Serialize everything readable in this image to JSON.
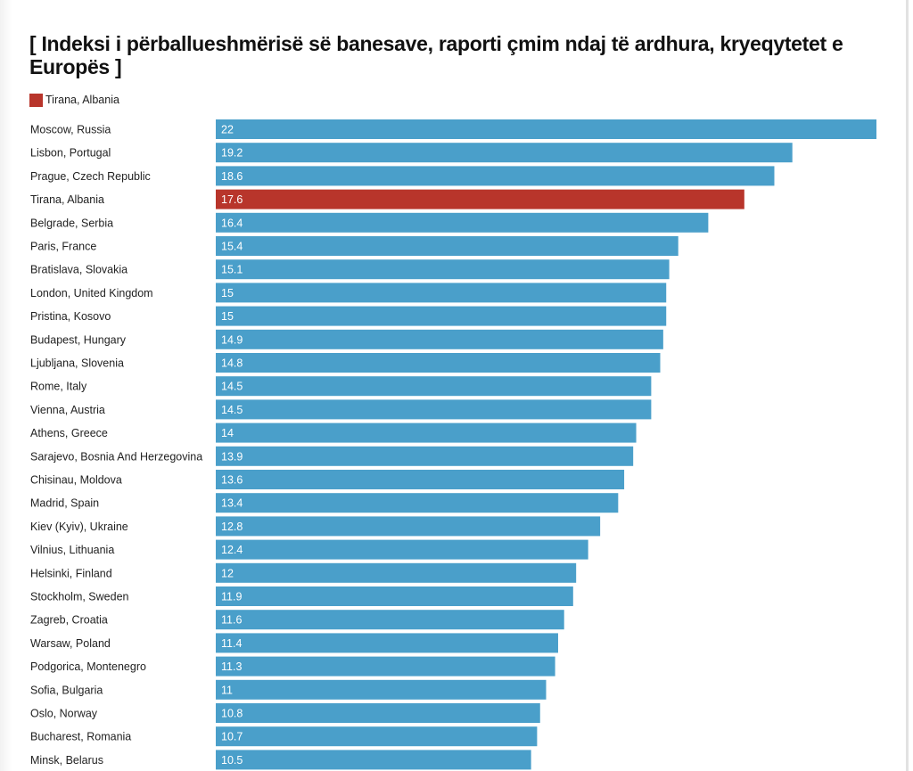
{
  "title": "[ Indeksi i përballueshmërisë së banesave, raporti çmim ndaj të ardhura, kryeqytetet e Europës ]",
  "legend": {
    "label": "Tirana, Albania",
    "color": "#b8352b"
  },
  "colors": {
    "default_bar": "#4a9fca",
    "highlight_bar": "#b8352b"
  },
  "chart_data": {
    "type": "bar",
    "orientation": "horizontal",
    "title": "[ Indeksi i përballueshmërisë së banesave, raporti çmim ndaj të ardhura, kryeqytetet e Europës ]",
    "xlabel": "",
    "ylabel": "",
    "xlim": [
      0,
      22
    ],
    "grid": false,
    "legend": {
      "entries": [
        "Tirana, Albania"
      ],
      "placement": "top-left"
    },
    "highlight": "Tirana, Albania",
    "categories": [
      "Moscow, Russia",
      "Lisbon, Portugal",
      "Prague, Czech Republic",
      "Tirana, Albania",
      "Belgrade, Serbia",
      "Paris, France",
      "Bratislava, Slovakia",
      "London, United Kingdom",
      "Pristina, Kosovo",
      "Budapest, Hungary",
      "Ljubljana, Slovenia",
      "Rome, Italy",
      "Vienna, Austria",
      "Athens, Greece",
      "Sarajevo, Bosnia And Herzegovina",
      "Chisinau, Moldova",
      "Madrid, Spain",
      "Kiev (Kyiv), Ukraine",
      "Vilnius, Lithuania",
      "Helsinki, Finland",
      "Stockholm, Sweden",
      "Zagreb, Croatia",
      "Warsaw, Poland",
      "Podgorica, Montenegro",
      "Sofia, Bulgaria",
      "Oslo, Norway",
      "Bucharest, Romania",
      "Minsk, Belarus"
    ],
    "values": [
      22,
      19.2,
      18.6,
      17.6,
      16.4,
      15.4,
      15.1,
      15,
      15,
      14.9,
      14.8,
      14.5,
      14.5,
      14,
      13.9,
      13.6,
      13.4,
      12.8,
      12.4,
      12,
      11.9,
      11.6,
      11.4,
      11.3,
      11,
      10.8,
      10.7,
      10.5
    ],
    "value_labels": [
      "22",
      "19.2",
      "18.6",
      "17.6",
      "16.4",
      "15.4",
      "15.1",
      "15",
      "15",
      "14.9",
      "14.8",
      "14.5",
      "14.5",
      "14",
      "13.9",
      "13.6",
      "13.4",
      "12.8",
      "12.4",
      "12",
      "11.9",
      "11.6",
      "11.4",
      "11.3",
      "11",
      "10.8",
      "10.7",
      "10.5"
    ]
  }
}
